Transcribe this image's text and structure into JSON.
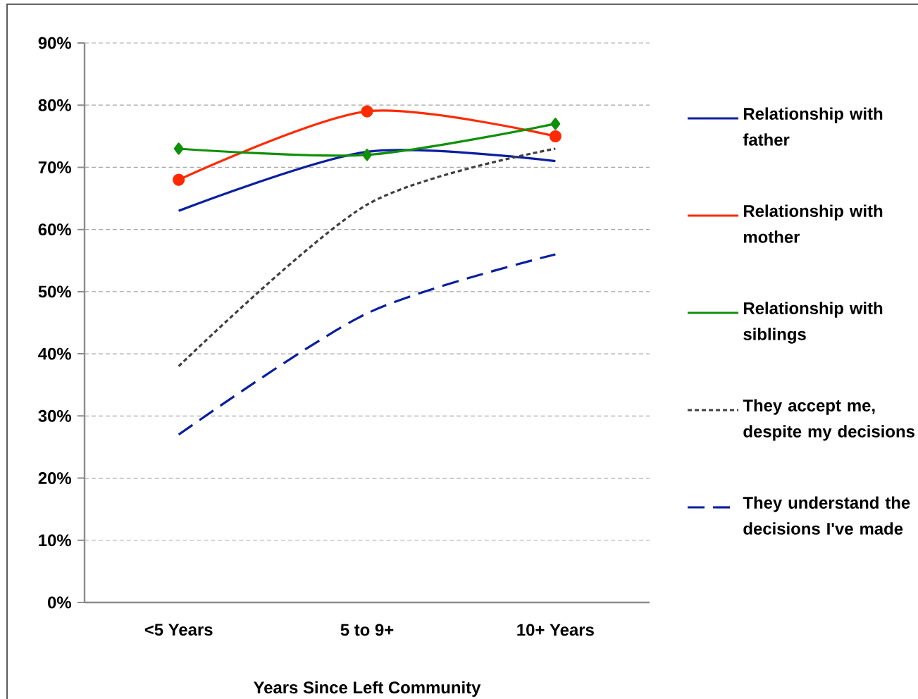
{
  "chart_data": {
    "type": "line",
    "xlabel": "Years Since Left Community",
    "categories": [
      "<5 Years",
      "5 to 9+",
      "10+ Years"
    ],
    "series": [
      {
        "name": "Relationship with father",
        "color": "#0a1fa0",
        "values": [
          63,
          72.5,
          71
        ],
        "marker": "none",
        "line_style": "solid"
      },
      {
        "name": "Relationship with mother",
        "color": "#ff2a00",
        "values": [
          68,
          79,
          75
        ],
        "marker": "circle",
        "line_style": "solid"
      },
      {
        "name": "Relationship with siblings",
        "color": "#10900a",
        "values": [
          73,
          72,
          77
        ],
        "marker": "diamond",
        "line_style": "solid"
      },
      {
        "name": "They accept me, despite my decisions",
        "color": "#404040",
        "values": [
          38,
          64,
          73
        ],
        "marker": "none",
        "line_style": "dotted"
      },
      {
        "name": "They understand the decisions I've made",
        "color": "#0a1fa0",
        "values": [
          27,
          46.5,
          56
        ],
        "marker": "none",
        "line_style": "dashed"
      }
    ],
    "ylim": [
      0,
      90
    ],
    "yticks": [
      {
        "value": 0,
        "label": "0%"
      },
      {
        "value": 10,
        "label": "10%"
      },
      {
        "value": 20,
        "label": "20%"
      },
      {
        "value": 30,
        "label": "30%"
      },
      {
        "value": 40,
        "label": "40%"
      },
      {
        "value": 50,
        "label": "50%"
      },
      {
        "value": 60,
        "label": "60%"
      },
      {
        "value": 70,
        "label": "70%"
      },
      {
        "value": 80,
        "label": "80%"
      },
      {
        "value": 90,
        "label": "90%"
      }
    ],
    "grid": "y",
    "legend": "right"
  }
}
